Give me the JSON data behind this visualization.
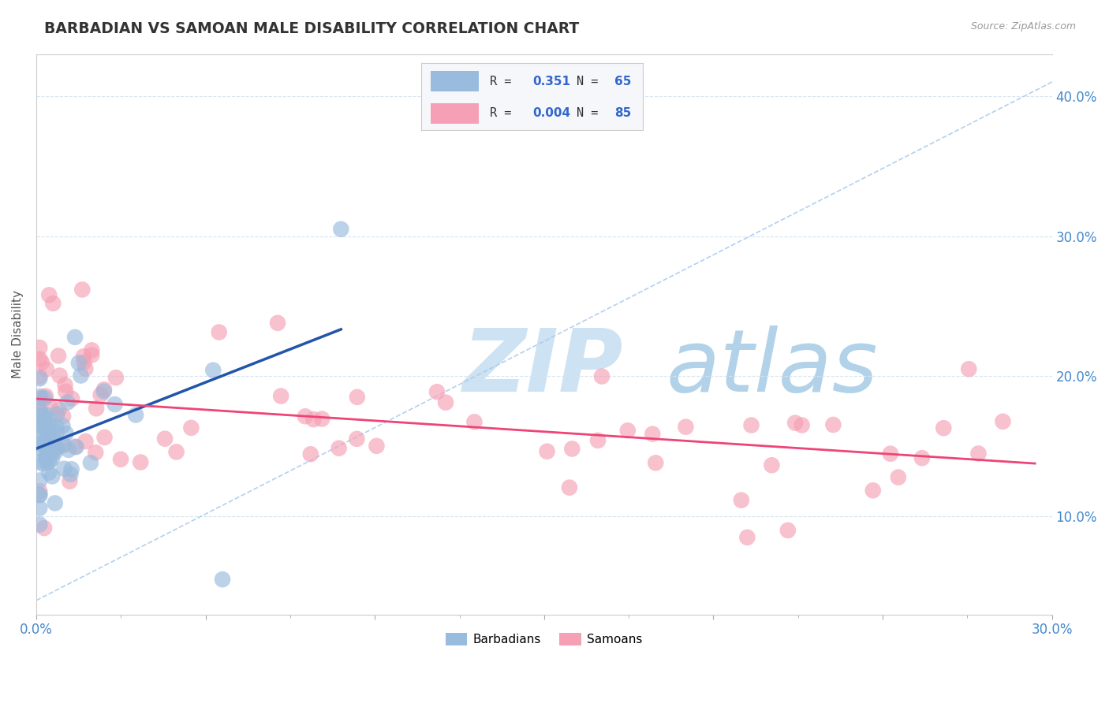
{
  "title": "BARBADIAN VS SAMOAN MALE DISABILITY CORRELATION CHART",
  "source_text": "Source: ZipAtlas.com",
  "ylabel": "Male Disability",
  "xlim": [
    0.0,
    0.3
  ],
  "ylim": [
    0.03,
    0.43
  ],
  "barbadian_color": "#99bbdd",
  "samoan_color": "#f5a0b5",
  "barbadian_line_color": "#2255aa",
  "samoan_line_color": "#ee4477",
  "ref_line_color": "#aaccee",
  "legend_R1": "0.351",
  "legend_N1": "65",
  "legend_R2": "0.004",
  "legend_N2": "85",
  "watermark_zip": "ZIP",
  "watermark_atlas": "atlas",
  "watermark_color_zip": "#c5ddf0",
  "watermark_color_atlas": "#88bbdd",
  "background_color": "#ffffff",
  "title_color": "#333333",
  "axis_label_color": "#555555",
  "tick_color": "#4488cc",
  "legend_text_color": "#333333",
  "legend_val_color": "#3366cc"
}
